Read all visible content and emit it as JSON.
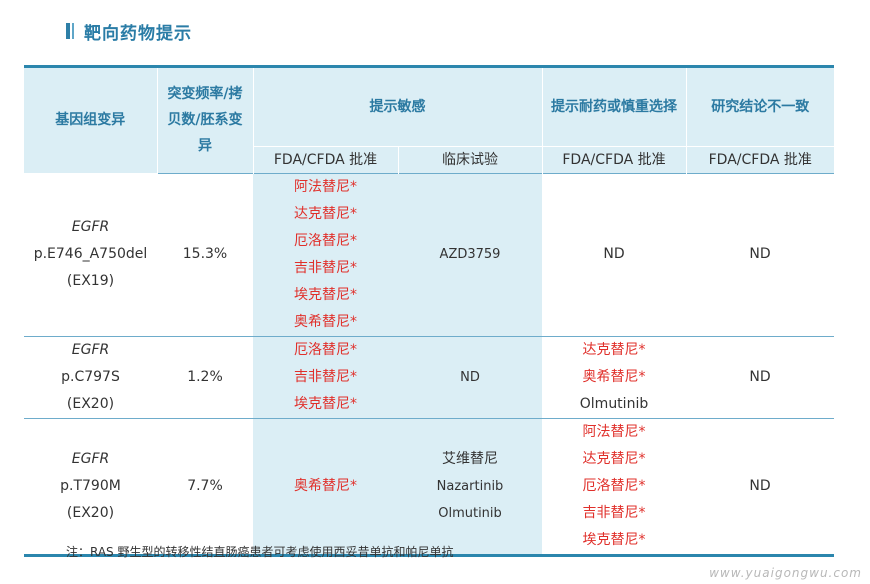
{
  "title": "靶向药物提示",
  "table": {
    "headers": {
      "gene": "基因组变异",
      "freq": "突变频率/拷贝数/胚系变异",
      "sensitive": "提示敏感",
      "resistant": "提示耐药或慎重选择",
      "inconsistent": "研究结论不一致",
      "sub_fda": "FDA/CFDA 批准",
      "sub_trial": "临床试验",
      "sub_fda2": "FDA/CFDA 批准",
      "sub_fda3": "FDA/CFDA 批准"
    },
    "rows": [
      {
        "gene": "EGFR",
        "variant": "p.E746_A750del",
        "exon": "(EX19)",
        "freq": "15.3%",
        "sensitive_fda": [
          "阿法替尼*",
          "达克替尼*",
          "厄洛替尼*",
          "吉非替尼*",
          "埃克替尼*",
          "奥希替尼*"
        ],
        "sensitive_trial": [
          "AZD3759"
        ],
        "resistant": [
          "ND"
        ],
        "inconsistent": "ND"
      },
      {
        "gene": "EGFR",
        "variant": "p.C797S",
        "exon": "(EX20)",
        "freq": "1.2%",
        "sensitive_fda": [
          "厄洛替尼*",
          "吉非替尼*",
          "埃克替尼*"
        ],
        "sensitive_trial": [
          "ND"
        ],
        "resistant": [
          "达克替尼*",
          "奥希替尼*",
          "Olmutinib"
        ],
        "inconsistent": "ND"
      },
      {
        "gene": "EGFR",
        "variant": "p.T790M",
        "exon": "(EX20)",
        "freq": "7.7%",
        "sensitive_fda": [
          "奥希替尼*"
        ],
        "sensitive_trial": [
          "艾维替尼",
          "Nazartinib",
          "Olmutinib"
        ],
        "resistant": [
          "阿法替尼*",
          "达克替尼*",
          "厄洛替尼*",
          "吉非替尼*",
          "埃克替尼*"
        ],
        "inconsistent": "ND"
      }
    ]
  },
  "note": "注：RAS 野生型的转移性结直肠癌患者可考虑使用西妥昔单抗和帕尼单抗",
  "watermark": "www.yuaigongwu.com",
  "colors": {
    "accent": "#2b86ad",
    "highlight": "#dbeef5",
    "red": "#e0302b"
  }
}
